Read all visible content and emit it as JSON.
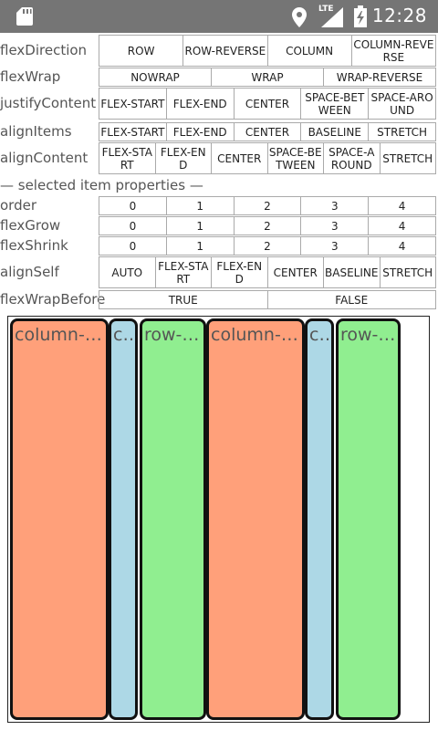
{
  "status_bar": {
    "time": "12:28",
    "network": "LTE",
    "icons": [
      "sd-card-icon",
      "location-icon",
      "signal-icon",
      "battery-icon"
    ]
  },
  "controls": [
    {
      "label": "flexDirection",
      "options": [
        "ROW",
        "ROW-REVERSE",
        "COLUMN",
        "COLUMN-REVERSE"
      ]
    },
    {
      "label": "flexWrap",
      "options": [
        "NOWRAP",
        "WRAP",
        "WRAP-REVERSE"
      ]
    },
    {
      "label": "justifyContent",
      "options": [
        "FLEX-START",
        "FLEX-END",
        "CENTER",
        "SPACE-BETWEEN",
        "SPACE-AROUND"
      ]
    },
    {
      "label": "alignItems",
      "options": [
        "FLEX-START",
        "FLEX-END",
        "CENTER",
        "BASELINE",
        "STRETCH"
      ]
    },
    {
      "label": "alignContent",
      "options": [
        "FLEX-START",
        "FLEX-END",
        "CENTER",
        "SPACE-BETWEEN",
        "SPACE-AROUND",
        "STRETCH"
      ]
    }
  ],
  "section_title": "— selected item properties —",
  "item_controls": [
    {
      "label": "order",
      "options": [
        "0",
        "1",
        "2",
        "3",
        "4"
      ]
    },
    {
      "label": "flexGrow",
      "options": [
        "0",
        "1",
        "2",
        "3",
        "4"
      ]
    },
    {
      "label": "flexShrink",
      "options": [
        "0",
        "1",
        "2",
        "3",
        "4"
      ]
    },
    {
      "label": "alignSelf",
      "options": [
        "AUTO",
        "FLEX-START",
        "FLEX-END",
        "CENTER",
        "BASELINE",
        "STRETCH"
      ]
    },
    {
      "label": "flexWrapBefore",
      "options": [
        "TRUE",
        "FALSE"
      ]
    }
  ],
  "preview_items": [
    {
      "text": "column-r…",
      "color": "#ffa07a"
    },
    {
      "text": "c…",
      "color": "#add8e6"
    },
    {
      "text": "row-r…",
      "color": "#90ee90"
    },
    {
      "text": "column-r…",
      "color": "#ffa07a"
    },
    {
      "text": "c…",
      "color": "#add8e6"
    },
    {
      "text": "row-r…",
      "color": "#90ee90"
    }
  ]
}
